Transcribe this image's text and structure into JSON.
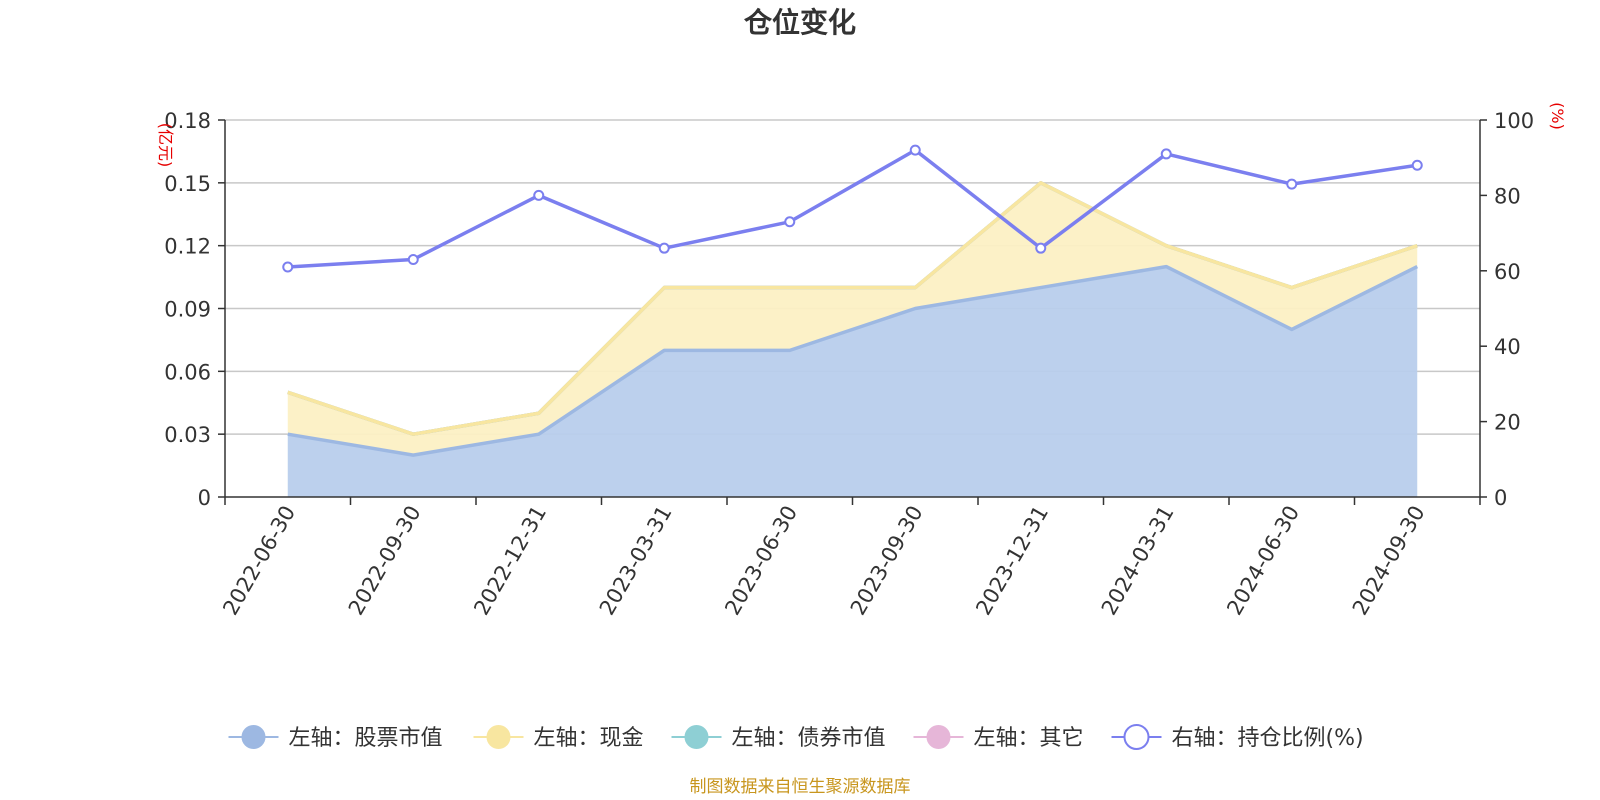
{
  "chart_data": {
    "type": "area",
    "title": "仓位变化",
    "categories": [
      "2022-06-30",
      "2022-09-30",
      "2022-12-31",
      "2023-03-31",
      "2023-06-30",
      "2023-09-30",
      "2023-12-31",
      "2024-03-31",
      "2024-06-30",
      "2024-09-30"
    ],
    "left_axis": {
      "unit": "(亿元)",
      "ylim": [
        0,
        0.18
      ],
      "ticks": [
        "0",
        "0.03",
        "0.06",
        "0.09",
        "0.12",
        "0.15",
        "0.18"
      ]
    },
    "right_axis": {
      "unit": "(%)",
      "ylim": [
        0,
        100
      ],
      "ticks": [
        "0",
        "20",
        "40",
        "60",
        "80",
        "100"
      ]
    },
    "series": [
      {
        "name": "左轴：股票市值",
        "axis": "left",
        "stacked": true,
        "color": "#9db8e2",
        "fill": "#b8cdec",
        "values": [
          0.03,
          0.02,
          0.03,
          0.07,
          0.07,
          0.09,
          0.1,
          0.11,
          0.08,
          0.11
        ]
      },
      {
        "name": "左轴：现金",
        "axis": "left",
        "stacked": true,
        "color": "#f8e6a0",
        "fill": "#fcf0c4",
        "values": [
          0.02,
          0.01,
          0.01,
          0.03,
          0.03,
          0.01,
          0.05,
          0.01,
          0.02,
          0.01
        ]
      },
      {
        "name": "左轴：债券市值",
        "axis": "left",
        "stacked": true,
        "color": "#8ecfd4",
        "fill": "#bfe5e8",
        "values": [
          0,
          0,
          0,
          0,
          0,
          0,
          0,
          0,
          0,
          0
        ]
      },
      {
        "name": "左轴：其它",
        "axis": "left",
        "stacked": true,
        "color": "#e6b6d8",
        "fill": "#f1d3e8",
        "values": [
          0,
          0,
          0,
          0,
          0,
          0,
          0,
          0,
          0,
          0
        ]
      },
      {
        "name": "右轴：持仓比例(%)",
        "axis": "right",
        "stacked": false,
        "color": "#7b7fef",
        "values": [
          61,
          63,
          80,
          66,
          73,
          92,
          66,
          91,
          83,
          88
        ]
      }
    ],
    "legend_position": "bottom",
    "grid": true,
    "source_note": "制图数据来自恒生聚源数据库"
  }
}
